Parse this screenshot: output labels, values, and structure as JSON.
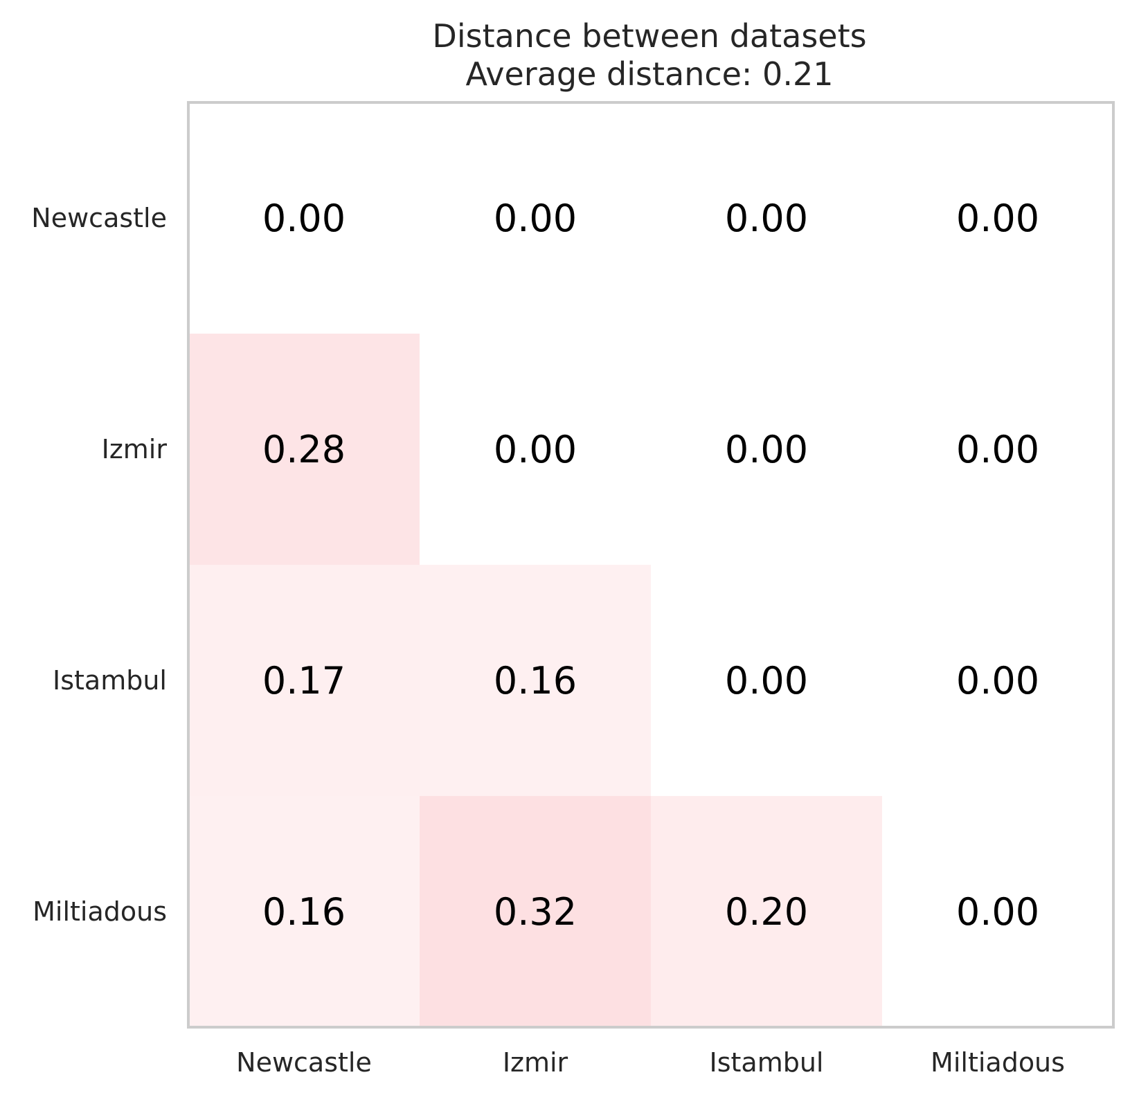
{
  "chart_data": {
    "type": "heatmap",
    "title": "Distance between datasets",
    "subtitle": "Average distance: 0.21",
    "row_labels": [
      "Newcastle",
      "Izmir",
      "Istambul",
      "Miltiadous"
    ],
    "col_labels": [
      "Newcastle",
      "Izmir",
      "Istambul",
      "Miltiadous"
    ],
    "values": [
      [
        0.0,
        0.0,
        0.0,
        0.0
      ],
      [
        0.28,
        0.0,
        0.0,
        0.0
      ],
      [
        0.17,
        0.16,
        0.0,
        0.0
      ],
      [
        0.16,
        0.32,
        0.2,
        0.0
      ]
    ],
    "value_labels": [
      [
        "0.00",
        "0.00",
        "0.00",
        "0.00"
      ],
      [
        "0.28",
        "0.00",
        "0.00",
        "0.00"
      ],
      [
        "0.17",
        "0.16",
        "0.00",
        "0.00"
      ],
      [
        "0.16",
        "0.32",
        "0.20",
        "0.00"
      ]
    ],
    "color_scale": {
      "min_color": "#ffffff",
      "max_color": "#fde0e2",
      "vmin": 0,
      "vmax": 0.32
    },
    "frame_color": "#cccccc",
    "grid": false,
    "legend": "none"
  }
}
